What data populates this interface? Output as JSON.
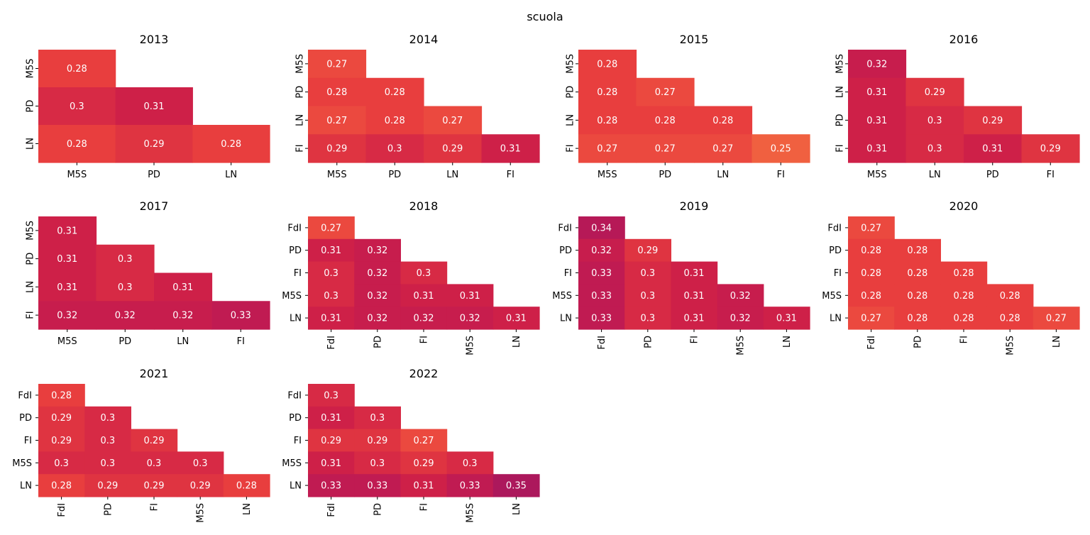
{
  "suptitle": "scuola",
  "chart_data": [
    {
      "type": "heatmap",
      "title": "2013",
      "labels": [
        "M5S",
        "PD",
        "LN"
      ],
      "values": [
        [
          0.28
        ],
        [
          0.3,
          0.31
        ],
        [
          0.28,
          0.29,
          0.28
        ]
      ]
    },
    {
      "type": "heatmap",
      "title": "2014",
      "labels": [
        "M5S",
        "PD",
        "LN",
        "FI"
      ],
      "values": [
        [
          0.27
        ],
        [
          0.28,
          0.28
        ],
        [
          0.27,
          0.28,
          0.27
        ],
        [
          0.29,
          0.3,
          0.29,
          0.31
        ]
      ]
    },
    {
      "type": "heatmap",
      "title": "2015",
      "labels": [
        "M5S",
        "PD",
        "LN",
        "FI"
      ],
      "values": [
        [
          0.28
        ],
        [
          0.28,
          0.27
        ],
        [
          0.28,
          0.28,
          0.28
        ],
        [
          0.27,
          0.27,
          0.27,
          0.25
        ]
      ]
    },
    {
      "type": "heatmap",
      "title": "2016",
      "labels": [
        "M5S",
        "LN",
        "PD",
        "FI"
      ],
      "values": [
        [
          0.32
        ],
        [
          0.31,
          0.29
        ],
        [
          0.31,
          0.3,
          0.29
        ],
        [
          0.31,
          0.3,
          0.31,
          0.29
        ]
      ]
    },
    {
      "type": "heatmap",
      "title": "2017",
      "labels": [
        "M5S",
        "PD",
        "LN",
        "FI"
      ],
      "values": [
        [
          0.31
        ],
        [
          0.31,
          0.3
        ],
        [
          0.31,
          0.3,
          0.31
        ],
        [
          0.32,
          0.32,
          0.32,
          0.33
        ]
      ]
    },
    {
      "type": "heatmap",
      "title": "2018",
      "labels": [
        "FdI",
        "PD",
        "FI",
        "M5S",
        "LN"
      ],
      "values": [
        [
          0.27
        ],
        [
          0.31,
          0.32
        ],
        [
          0.3,
          0.32,
          0.3
        ],
        [
          0.3,
          0.32,
          0.31,
          0.31
        ],
        [
          0.31,
          0.32,
          0.32,
          0.32,
          0.31
        ]
      ]
    },
    {
      "type": "heatmap",
      "title": "2019",
      "labels": [
        "FdI",
        "PD",
        "FI",
        "M5S",
        "LN"
      ],
      "values": [
        [
          0.34
        ],
        [
          0.32,
          0.29
        ],
        [
          0.33,
          0.3,
          0.31
        ],
        [
          0.33,
          0.3,
          0.31,
          0.32
        ],
        [
          0.33,
          0.3,
          0.31,
          0.32,
          0.31
        ]
      ]
    },
    {
      "type": "heatmap",
      "title": "2020",
      "labels": [
        "FdI",
        "PD",
        "FI",
        "M5S",
        "LN"
      ],
      "values": [
        [
          0.27
        ],
        [
          0.28,
          0.28
        ],
        [
          0.28,
          0.28,
          0.28
        ],
        [
          0.28,
          0.28,
          0.28,
          0.28
        ],
        [
          0.27,
          0.28,
          0.28,
          0.28,
          0.27
        ]
      ]
    },
    {
      "type": "heatmap",
      "title": "2021",
      "labels": [
        "FdI",
        "PD",
        "FI",
        "M5S",
        "LN"
      ],
      "values": [
        [
          0.28
        ],
        [
          0.29,
          0.3
        ],
        [
          0.29,
          0.3,
          0.29
        ],
        [
          0.3,
          0.3,
          0.3,
          0.3
        ],
        [
          0.28,
          0.29,
          0.29,
          0.29,
          0.28
        ]
      ]
    },
    {
      "type": "heatmap",
      "title": "2022",
      "labels": [
        "FdI",
        "PD",
        "FI",
        "M5S",
        "LN"
      ],
      "values": [
        [
          0.3
        ],
        [
          0.31,
          0.3
        ],
        [
          0.29,
          0.29,
          0.27
        ],
        [
          0.31,
          0.3,
          0.29,
          0.3
        ],
        [
          0.33,
          0.33,
          0.31,
          0.33,
          0.35
        ]
      ]
    }
  ]
}
